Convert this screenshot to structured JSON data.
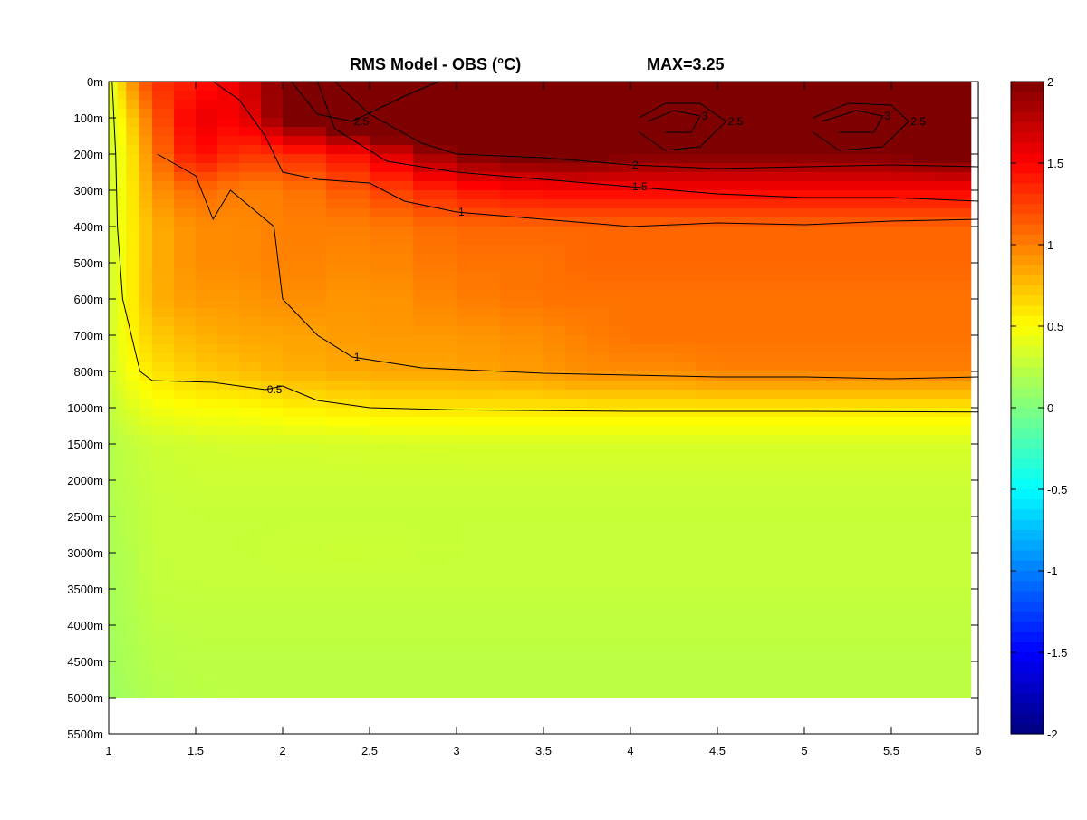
{
  "chart_data": {
    "type": "heatmap",
    "title": "RMS Model - OBS (°C)",
    "title_annotation": "MAX=3.25",
    "x_ticks": [
      "1",
      "1.5",
      "2",
      "2.5",
      "3",
      "3.5",
      "4",
      "4.5",
      "5",
      "5.5",
      "6"
    ],
    "xlim": [
      1,
      6
    ],
    "y_ticks": [
      "0m",
      "100m",
      "200m",
      "300m",
      "400m",
      "500m",
      "600m",
      "700m",
      "800m",
      "1000m",
      "1500m",
      "2000m",
      "2500m",
      "3000m",
      "3500m",
      "4000m",
      "4500m",
      "5000m",
      "5500m"
    ],
    "depth_levels": [
      0,
      100,
      200,
      300,
      400,
      500,
      600,
      700,
      800,
      1000,
      1500,
      2000,
      2500,
      3000,
      3500,
      4000,
      4500,
      5000
    ],
    "colorbar": {
      "range": [
        -2,
        2
      ],
      "ticks": [
        "2",
        "1.5",
        "1",
        "0.5",
        "0",
        "-0.5",
        "-1",
        "-1.5",
        "-2"
      ],
      "colors": [
        "#00007f",
        "#0000ff",
        "#007fff",
        "#00ffff",
        "#7fff7f",
        "#ffff00",
        "#ff7f00",
        "#ff0000",
        "#7f0000"
      ]
    },
    "x_samples": [
      1.0,
      1.1,
      1.25,
      1.5,
      1.75,
      2.0,
      2.5,
      3.0,
      3.5,
      3.75,
      4.0,
      4.25,
      4.5,
      4.75,
      5.0,
      5.25,
      5.5,
      5.75,
      6.0
    ],
    "values": [
      [
        0.3,
        0.8,
        1.3,
        1.4,
        1.6,
        2.0,
        2.3,
        2.6,
        2.3,
        2.3,
        2.4,
        3.0,
        2.3,
        2.2,
        2.3,
        3.0,
        2.4,
        2.2,
        2.2
      ],
      [
        0.3,
        0.6,
        1.1,
        1.6,
        1.5,
        2.0,
        2.5,
        2.5,
        2.4,
        2.3,
        2.5,
        3.1,
        2.6,
        2.4,
        2.6,
        3.2,
        2.7,
        2.5,
        2.3
      ],
      [
        0.3,
        0.5,
        1.0,
        1.5,
        1.3,
        1.3,
        1.5,
        2.0,
        2.1,
        2.1,
        2.0,
        2.0,
        2.0,
        2.0,
        2.0,
        2.0,
        2.0,
        2.1,
        2.1
      ],
      [
        0.3,
        0.5,
        0.9,
        1.1,
        1.0,
        1.0,
        1.2,
        1.4,
        1.5,
        1.5,
        1.5,
        1.5,
        1.5,
        1.5,
        1.5,
        1.5,
        1.5,
        1.5,
        1.5
      ],
      [
        0.3,
        0.5,
        0.8,
        0.95,
        0.95,
        1.0,
        1.0,
        1.1,
        1.1,
        1.1,
        1.1,
        1.1,
        1.1,
        1.1,
        1.1,
        1.1,
        1.1,
        1.1,
        1.1
      ],
      [
        0.3,
        0.5,
        0.8,
        0.95,
        0.95,
        1.0,
        0.95,
        1.05,
        1.05,
        1.1,
        1.1,
        1.1,
        1.1,
        1.1,
        1.1,
        1.1,
        1.1,
        1.1,
        1.1
      ],
      [
        0.3,
        0.5,
        0.8,
        0.9,
        0.9,
        0.95,
        0.9,
        1.0,
        1.05,
        1.05,
        1.05,
        1.05,
        1.05,
        1.05,
        1.05,
        1.05,
        1.05,
        1.05,
        1.05
      ],
      [
        0.3,
        0.5,
        0.7,
        0.8,
        0.85,
        0.85,
        0.9,
        0.9,
        0.95,
        1.0,
        1.05,
        1.05,
        1.05,
        1.05,
        1.05,
        1.05,
        1.05,
        1.05,
        1.05
      ],
      [
        0.3,
        0.45,
        0.6,
        0.7,
        0.75,
        0.8,
        0.85,
        0.85,
        0.9,
        0.95,
        0.95,
        0.95,
        1.0,
        1.0,
        1.0,
        1.0,
        1.0,
        1.0,
        1.0
      ],
      [
        0.25,
        0.35,
        0.45,
        0.5,
        0.5,
        0.55,
        0.6,
        0.6,
        0.6,
        0.6,
        0.6,
        0.6,
        0.6,
        0.6,
        0.6,
        0.6,
        0.6,
        0.6,
        0.6
      ],
      [
        0.2,
        0.25,
        0.3,
        0.32,
        0.33,
        0.33,
        0.34,
        0.35,
        0.35,
        0.35,
        0.35,
        0.35,
        0.35,
        0.35,
        0.35,
        0.35,
        0.35,
        0.35,
        0.35
      ],
      [
        0.2,
        0.24,
        0.28,
        0.3,
        0.3,
        0.3,
        0.3,
        0.3,
        0.3,
        0.3,
        0.3,
        0.3,
        0.3,
        0.3,
        0.3,
        0.3,
        0.3,
        0.3,
        0.3
      ],
      [
        0.18,
        0.22,
        0.27,
        0.28,
        0.28,
        0.28,
        0.28,
        0.28,
        0.28,
        0.28,
        0.28,
        0.28,
        0.28,
        0.28,
        0.28,
        0.28,
        0.28,
        0.28,
        0.28
      ],
      [
        0.17,
        0.2,
        0.27,
        0.28,
        0.28,
        0.29,
        0.3,
        0.28,
        0.28,
        0.28,
        0.28,
        0.28,
        0.28,
        0.28,
        0.28,
        0.28,
        0.28,
        0.28,
        0.28
      ],
      [
        0.16,
        0.19,
        0.26,
        0.27,
        0.27,
        0.27,
        0.27,
        0.27,
        0.27,
        0.27,
        0.27,
        0.27,
        0.27,
        0.27,
        0.27,
        0.27,
        0.27,
        0.27,
        0.27
      ],
      [
        0.15,
        0.18,
        0.24,
        0.25,
        0.25,
        0.25,
        0.25,
        0.25,
        0.25,
        0.25,
        0.25,
        0.25,
        0.25,
        0.25,
        0.25,
        0.25,
        0.25,
        0.25,
        0.25
      ],
      [
        0.14,
        0.17,
        0.22,
        0.24,
        0.24,
        0.24,
        0.24,
        0.24,
        0.24,
        0.24,
        0.24,
        0.24,
        0.24,
        0.24,
        0.24,
        0.24,
        0.24,
        0.24,
        0.24
      ],
      [
        0.12,
        0.15,
        0.2,
        0.23,
        0.24,
        0.24,
        0.24,
        0.24,
        0.24,
        0.24,
        0.24,
        0.24,
        0.24,
        0.24,
        0.24,
        0.24,
        0.24,
        0.24,
        0.24
      ]
    ],
    "contours": [
      {
        "label": "0.5",
        "points": [
          [
            1.02,
            0
          ],
          [
            1.04,
            200
          ],
          [
            1.05,
            400
          ],
          [
            1.08,
            600
          ],
          [
            1.18,
            800
          ],
          [
            1.25,
            850
          ],
          [
            1.6,
            860
          ],
          [
            1.9,
            900
          ],
          [
            2.0,
            880
          ],
          [
            2.2,
            960
          ],
          [
            2.5,
            1000
          ],
          [
            3.0,
            1030
          ],
          [
            4.0,
            1050
          ],
          [
            5.0,
            1050
          ],
          [
            6.0,
            1060
          ]
        ]
      },
      {
        "label": "1",
        "points": [
          [
            1.6,
            0
          ],
          [
            1.75,
            50
          ],
          [
            1.9,
            150
          ],
          [
            2.0,
            250
          ],
          [
            2.2,
            270
          ],
          [
            2.5,
            280
          ],
          [
            2.7,
            330
          ],
          [
            3.0,
            360
          ],
          [
            3.5,
            380
          ],
          [
            4.0,
            400
          ],
          [
            4.5,
            390
          ],
          [
            5.0,
            395
          ],
          [
            5.5,
            385
          ],
          [
            6.0,
            380
          ]
        ]
      },
      {
        "label": "1",
        "points": [
          [
            1.28,
            200
          ],
          [
            1.5,
            260
          ],
          [
            1.6,
            380
          ],
          [
            1.7,
            300
          ],
          [
            1.95,
            400
          ],
          [
            2.0,
            600
          ],
          [
            2.2,
            700
          ],
          [
            2.4,
            760
          ],
          [
            2.8,
            790
          ],
          [
            3.5,
            810
          ],
          [
            4.0,
            820
          ],
          [
            4.5,
            830
          ],
          [
            5.0,
            830
          ],
          [
            5.5,
            840
          ],
          [
            6.0,
            830
          ]
        ]
      },
      {
        "label": "1.5",
        "points": [
          [
            2.2,
            0
          ],
          [
            2.3,
            130
          ],
          [
            2.6,
            220
          ],
          [
            3.0,
            250
          ],
          [
            3.5,
            270
          ],
          [
            4.0,
            290
          ],
          [
            4.5,
            310
          ],
          [
            5.0,
            320
          ],
          [
            5.5,
            320
          ],
          [
            6.0,
            330
          ]
        ]
      },
      {
        "label": "2",
        "points": [
          [
            2.3,
            0
          ],
          [
            2.5,
            90
          ],
          [
            2.8,
            170
          ],
          [
            3.0,
            200
          ],
          [
            3.5,
            210
          ],
          [
            4.0,
            230
          ],
          [
            4.5,
            240
          ],
          [
            5.0,
            235
          ],
          [
            5.5,
            230
          ],
          [
            6.0,
            235
          ]
        ]
      },
      {
        "label": "2.5",
        "points": [
          [
            4.05,
            100
          ],
          [
            4.2,
            60
          ],
          [
            4.4,
            60
          ],
          [
            4.55,
            110
          ],
          [
            4.4,
            180
          ],
          [
            4.2,
            190
          ],
          [
            4.05,
            140
          ]
        ]
      },
      {
        "label": "3",
        "points": [
          [
            4.1,
            110
          ],
          [
            4.25,
            80
          ],
          [
            4.4,
            95
          ],
          [
            4.35,
            140
          ],
          [
            4.2,
            140
          ]
        ]
      },
      {
        "label": "2.5",
        "points": [
          [
            5.05,
            100
          ],
          [
            5.25,
            60
          ],
          [
            5.5,
            65
          ],
          [
            5.6,
            110
          ],
          [
            5.45,
            180
          ],
          [
            5.2,
            190
          ],
          [
            5.05,
            140
          ]
        ]
      },
      {
        "label": "3",
        "points": [
          [
            5.1,
            110
          ],
          [
            5.3,
            80
          ],
          [
            5.45,
            95
          ],
          [
            5.4,
            140
          ],
          [
            5.2,
            140
          ]
        ]
      },
      {
        "label": "2.5",
        "points": [
          [
            2.05,
            0
          ],
          [
            2.2,
            90
          ],
          [
            2.4,
            110
          ],
          [
            2.7,
            40
          ],
          [
            2.9,
            0
          ]
        ]
      }
    ]
  }
}
